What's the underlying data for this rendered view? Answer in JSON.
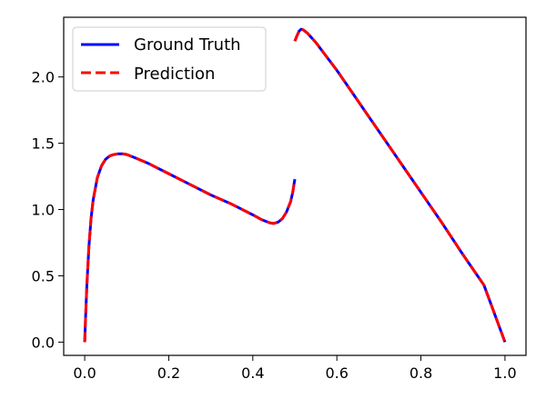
{
  "chart_data": {
    "type": "line",
    "title": "",
    "xlabel": "",
    "ylabel": "",
    "xlim": [
      -0.05,
      1.05
    ],
    "ylim": [
      -0.1,
      2.45
    ],
    "x_ticks": [
      0.0,
      0.2,
      0.4,
      0.6,
      0.8,
      1.0
    ],
    "x_tick_labels": [
      "0.0",
      "0.2",
      "0.4",
      "0.6",
      "0.8",
      "1.0"
    ],
    "y_ticks": [
      0.0,
      0.5,
      1.0,
      1.5,
      2.0
    ],
    "y_tick_labels": [
      "0.0",
      "0.5",
      "1.0",
      "1.5",
      "2.0"
    ],
    "grid": false,
    "legend": {
      "position": "top-left"
    },
    "series": [
      {
        "name": "Ground Truth",
        "color": "#0000ff",
        "style": "solid",
        "segments": [
          {
            "x": [
              0.0,
              0.002,
              0.005,
              0.01,
              0.015,
              0.02,
              0.03,
              0.04,
              0.05,
              0.06,
              0.07,
              0.08,
              0.09,
              0.1,
              0.12,
              0.15,
              0.2,
              0.25,
              0.3,
              0.35,
              0.4,
              0.42,
              0.44,
              0.45,
              0.46,
              0.47,
              0.48,
              0.49,
              0.495,
              0.5
            ],
            "y": [
              0.0,
              0.18,
              0.42,
              0.72,
              0.93,
              1.07,
              1.24,
              1.33,
              1.38,
              1.405,
              1.415,
              1.42,
              1.42,
              1.415,
              1.39,
              1.35,
              1.27,
              1.19,
              1.11,
              1.04,
              0.96,
              0.925,
              0.9,
              0.895,
              0.905,
              0.93,
              0.98,
              1.06,
              1.13,
              1.23
            ]
          },
          {
            "x": [
              0.5,
              0.505,
              0.51,
              0.515,
              0.52,
              0.53,
              0.55,
              0.6,
              0.65,
              0.7,
              0.75,
              0.8,
              0.85,
              0.9,
              0.95,
              1.0
            ],
            "y": [
              2.27,
              2.31,
              2.345,
              2.36,
              2.355,
              2.33,
              2.26,
              2.05,
              1.82,
              1.59,
              1.36,
              1.13,
              0.9,
              0.66,
              0.43,
              0.0
            ]
          }
        ]
      },
      {
        "name": "Prediction",
        "color": "#ff0000",
        "style": "dashed",
        "segments": [
          {
            "x": [
              0.0,
              0.002,
              0.005,
              0.01,
              0.015,
              0.02,
              0.03,
              0.04,
              0.05,
              0.06,
              0.07,
              0.08,
              0.09,
              0.1,
              0.12,
              0.15,
              0.2,
              0.25,
              0.3,
              0.35,
              0.4,
              0.42,
              0.44,
              0.45,
              0.46,
              0.47,
              0.48,
              0.49,
              0.495,
              0.5
            ],
            "y": [
              0.0,
              0.18,
              0.42,
              0.72,
              0.93,
              1.07,
              1.24,
              1.33,
              1.38,
              1.405,
              1.415,
              1.42,
              1.42,
              1.415,
              1.39,
              1.35,
              1.27,
              1.19,
              1.11,
              1.04,
              0.96,
              0.925,
              0.9,
              0.895,
              0.905,
              0.93,
              0.98,
              1.06,
              1.13,
              1.23
            ]
          },
          {
            "x": [
              0.5,
              0.505,
              0.51,
              0.515,
              0.52,
              0.53,
              0.55,
              0.6,
              0.65,
              0.7,
              0.75,
              0.8,
              0.85,
              0.9,
              0.95,
              1.0
            ],
            "y": [
              2.27,
              2.31,
              2.345,
              2.36,
              2.355,
              2.33,
              2.26,
              2.05,
              1.82,
              1.59,
              1.36,
              1.13,
              0.9,
              0.66,
              0.43,
              0.0
            ]
          }
        ]
      }
    ]
  }
}
